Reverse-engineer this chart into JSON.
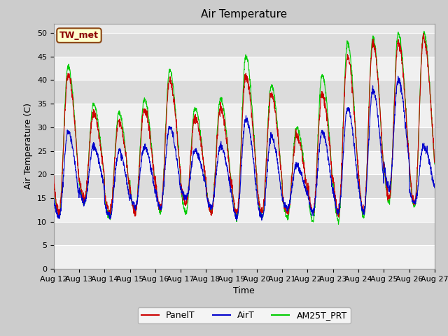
{
  "title": "Air Temperature",
  "ylabel": "Air Temperature (C)",
  "xlabel": "Time",
  "station_label": "TW_met",
  "ylim": [
    0,
    52
  ],
  "yticks": [
    0,
    5,
    10,
    15,
    20,
    25,
    30,
    35,
    40,
    45,
    50
  ],
  "date_labels": [
    "Aug 12",
    "Aug 13",
    "Aug 14",
    "Aug 15",
    "Aug 16",
    "Aug 17",
    "Aug 18",
    "Aug 19",
    "Aug 20",
    "Aug 21",
    "Aug 22",
    "Aug 23",
    "Aug 24",
    "Aug 25",
    "Aug 26",
    "Aug 27"
  ],
  "panel_color": "#cc0000",
  "air_color": "#0000cc",
  "am25_color": "#00cc00",
  "fig_bg_color": "#cccccc",
  "plot_bg_color": "#e8e8e8",
  "band_color_light": "#f0f0f0",
  "band_color_dark": "#dcdcdc",
  "legend_labels": [
    "PanelT",
    "AirT",
    "AM25T_PRT"
  ],
  "grid_color": "#ffffff",
  "title_fontsize": 11,
  "label_fontsize": 9,
  "tick_fontsize": 8,
  "legend_fontsize": 9
}
